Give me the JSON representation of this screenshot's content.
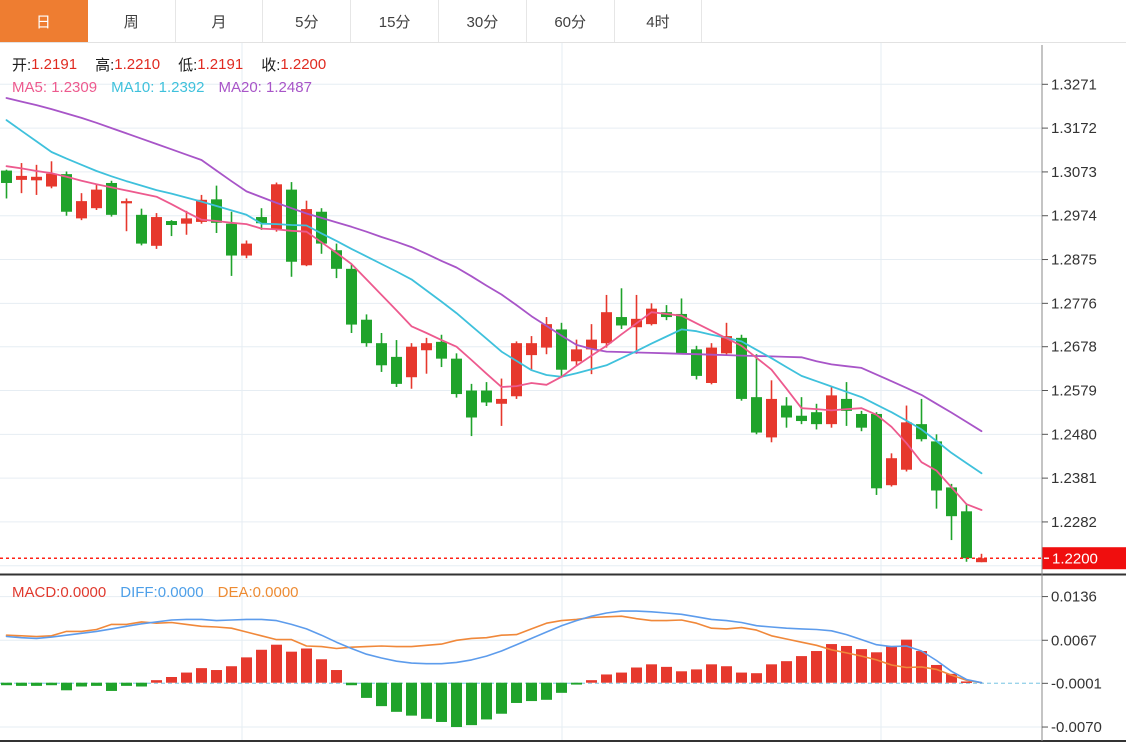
{
  "tabs": [
    {
      "label": "日",
      "active": true
    },
    {
      "label": "周",
      "active": false
    },
    {
      "label": "月",
      "active": false
    },
    {
      "label": "5分",
      "active": false
    },
    {
      "label": "15分",
      "active": false
    },
    {
      "label": "30分",
      "active": false
    },
    {
      "label": "60分",
      "active": false
    },
    {
      "label": "4时",
      "active": false
    }
  ],
  "ohlc_legend": {
    "open_label": "开:",
    "open_value": "1.2191",
    "high_label": "高:",
    "high_value": "1.2210",
    "low_label": "低:",
    "low_value": "1.2191",
    "close_label": "收:",
    "close_value": "1.2200"
  },
  "ma_legend": {
    "ma5_label": "MA5:",
    "ma5_value": "1.2309",
    "ma10_label": "MA10:",
    "ma10_value": "1.2392",
    "ma20_label": "MA20:",
    "ma20_value": "1.2487"
  },
  "macd_legend": {
    "macd_label": "MACD:",
    "macd_value": "0.0000",
    "diff_label": "DIFF:",
    "diff_value": "0.0000",
    "dea_label": "DEA:",
    "dea_value": "0.0000"
  },
  "price_tag": "1.2200",
  "colors": {
    "up": "#E6382D",
    "down": "#1FA32B",
    "ma5": "#ED5A8E",
    "ma10": "#3FC1DC",
    "ma20": "#A855C8",
    "ohlc_value": "#E02A20",
    "label_text": "#1c1c1c",
    "macd_text": "#E0392E",
    "diff_text": "#4D9FE8",
    "dea_text": "#ED8B33",
    "diff_line": "#5D9CEC",
    "dea_line": "#F0883A",
    "tag_bg": "#F00E0E",
    "tag_text": "#ffffff",
    "price_line": "#FF2015",
    "zero_dash": "#9BD4EA",
    "grid": "#E6EDF3",
    "axis_line": "#888888",
    "axis_text": "#333333",
    "tab_active_bg": "#EE7D31",
    "dark_border": "#333333"
  },
  "chart_data": {
    "type": "candlestick_with_macd",
    "note_color_convention": "red = up (close >= open), green = down",
    "candle_columns": [
      "open",
      "high",
      "low",
      "close"
    ],
    "candles": [
      [
        1.3076,
        1.3078,
        1.3013,
        1.3048
      ],
      [
        1.3055,
        1.3093,
        1.3025,
        1.3064
      ],
      [
        1.3054,
        1.3089,
        1.3021,
        1.3062
      ],
      [
        1.304,
        1.3097,
        1.3036,
        1.3069
      ],
      [
        1.3068,
        1.3074,
        1.2974,
        1.2983
      ],
      [
        1.2968,
        1.3025,
        1.2964,
        1.3007
      ],
      [
        1.2991,
        1.3045,
        1.2987,
        1.3033
      ],
      [
        1.3048,
        1.3053,
        1.2972,
        1.2976
      ],
      [
        1.3002,
        1.3013,
        1.2939,
        1.3007
      ],
      [
        1.2976,
        1.299,
        1.2907,
        1.2911
      ],
      [
        1.2906,
        1.298,
        1.2899,
        1.2971
      ],
      [
        1.2962,
        1.2964,
        1.2928,
        1.2953
      ],
      [
        1.2956,
        1.2985,
        1.2931,
        1.2968
      ],
      [
        1.296,
        1.3021,
        1.2956,
        1.301
      ],
      [
        1.3011,
        1.3042,
        1.2935,
        1.2958
      ],
      [
        1.2956,
        1.2983,
        1.2838,
        1.2884
      ],
      [
        1.2884,
        1.2918,
        1.2878,
        1.2911
      ],
      [
        1.2971,
        1.2991,
        1.2942,
        1.2957
      ],
      [
        1.2942,
        1.3049,
        1.2938,
        1.3045
      ],
      [
        1.3033,
        1.305,
        1.2836,
        1.287
      ],
      [
        1.2862,
        1.3008,
        1.286,
        1.2989
      ],
      [
        1.2983,
        1.2991,
        1.2888,
        1.2911
      ],
      [
        1.2896,
        1.2911,
        1.2833,
        1.2854
      ],
      [
        1.2854,
        1.2865,
        1.2709,
        1.2728
      ],
      [
        1.2739,
        1.2751,
        1.2678,
        1.2686
      ],
      [
        1.2686,
        1.2709,
        1.2621,
        1.2636
      ],
      [
        1.2655,
        1.2693,
        1.2587,
        1.2594
      ],
      [
        1.2609,
        1.2686,
        1.2583,
        1.2678
      ],
      [
        1.267,
        1.2698,
        1.2617,
        1.2686
      ],
      [
        1.2689,
        1.2705,
        1.2632,
        1.2651
      ],
      [
        1.2651,
        1.2663,
        1.2563,
        1.2571
      ],
      [
        1.2579,
        1.2594,
        1.2476,
        1.2518
      ],
      [
        1.2579,
        1.2598,
        1.2544,
        1.2552
      ],
      [
        1.2549,
        1.2606,
        1.2499,
        1.256
      ],
      [
        1.2566,
        1.269,
        1.256,
        1.2686
      ],
      [
        1.2659,
        1.2702,
        1.2626,
        1.2686
      ],
      [
        1.2676,
        1.2745,
        1.2661,
        1.2729
      ],
      [
        1.2717,
        1.2732,
        1.2612,
        1.2626
      ],
      [
        1.2645,
        1.2694,
        1.2634,
        1.2672
      ],
      [
        1.2672,
        1.2729,
        1.2616,
        1.2694
      ],
      [
        1.2686,
        1.2795,
        1.2676,
        1.2756
      ],
      [
        1.2745,
        1.281,
        1.2718,
        1.2726
      ],
      [
        1.2722,
        1.2795,
        1.2662,
        1.2741
      ],
      [
        1.2729,
        1.2776,
        1.2726,
        1.2764
      ],
      [
        1.2756,
        1.2772,
        1.2738,
        1.2745
      ],
      [
        1.2752,
        1.2787,
        1.2661,
        1.2662
      ],
      [
        1.2672,
        1.268,
        1.2604,
        1.2612
      ],
      [
        1.2596,
        1.2686,
        1.2593,
        1.2676
      ],
      [
        1.2663,
        1.2732,
        1.2657,
        1.2702
      ],
      [
        1.2698,
        1.2705,
        1.2556,
        1.256
      ],
      [
        1.2564,
        1.2661,
        1.248,
        1.2484
      ],
      [
        1.2473,
        1.2602,
        1.2462,
        1.256
      ],
      [
        1.2545,
        1.2564,
        1.2495,
        1.2518
      ],
      [
        1.2522,
        1.2564,
        1.2503,
        1.251
      ],
      [
        1.253,
        1.2549,
        1.2491,
        1.2503
      ],
      [
        1.2503,
        1.2587,
        1.2495,
        1.2568
      ],
      [
        1.256,
        1.2598,
        1.2499,
        1.2533
      ],
      [
        1.2526,
        1.2533,
        1.2487,
        1.2495
      ],
      [
        1.2526,
        1.253,
        1.2343,
        1.2358
      ],
      [
        1.2365,
        1.2437,
        1.2362,
        1.2426
      ],
      [
        1.24,
        1.2545,
        1.2396,
        1.2507
      ],
      [
        1.2503,
        1.256,
        1.2464,
        1.2469
      ],
      [
        1.2464,
        1.248,
        1.2312,
        1.2353
      ],
      [
        1.236,
        1.2368,
        1.2241,
        1.2295
      ],
      [
        1.2306,
        1.2322,
        1.2192,
        1.22
      ],
      [
        1.2191,
        1.221,
        1.2191,
        1.22
      ]
    ],
    "ma5": [
      1.3086,
      1.3081,
      1.3075,
      1.307,
      1.3062,
      1.3053,
      1.3045,
      1.3038,
      1.3031,
      1.3024,
      1.3017,
      1.3,
      1.2982,
      1.2965,
      1.2962,
      1.2958,
      1.2955,
      1.2945,
      1.2943,
      1.294,
      1.2938,
      1.2914,
      1.289,
      1.2865,
      1.283,
      1.2795,
      1.276,
      1.2724,
      1.2709,
      1.2693,
      1.2678,
      1.2648,
      1.2617,
      1.2587,
      1.2589,
      1.2596,
      1.2592,
      1.261,
      1.2635,
      1.2658,
      1.268,
      1.2706,
      1.2731,
      1.2756,
      1.2752,
      1.2748,
      1.2731,
      1.2714,
      1.2697,
      1.268,
      1.2653,
      1.2626,
      1.2583,
      1.2539,
      1.2537,
      1.2534,
      1.2537,
      1.2539,
      1.2524,
      1.2497,
      1.246,
      1.2417,
      1.2398,
      1.236,
      1.2322,
      1.2309
    ],
    "ma10": [
      1.319,
      1.3166,
      1.3142,
      1.3118,
      1.3103,
      1.3089,
      1.3075,
      1.3063,
      1.3052,
      1.3042,
      1.3032,
      1.3024,
      1.3015,
      1.3006,
      1.2996,
      1.2986,
      1.2976,
      1.2956,
      1.2955,
      1.2953,
      1.2952,
      1.2934,
      1.2917,
      1.2899,
      1.2882,
      1.2865,
      1.2848,
      1.283,
      1.2805,
      1.278,
      1.2754,
      1.2725,
      1.2696,
      1.2667,
      1.2646,
      1.2625,
      1.2614,
      1.261,
      1.2618,
      1.2627,
      1.2636,
      1.2652,
      1.2668,
      1.2685,
      1.2701,
      1.2717,
      1.2713,
      1.2705,
      1.2698,
      1.269,
      1.2671,
      1.2652,
      1.2632,
      1.2612,
      1.26,
      1.2588,
      1.2576,
      1.2564,
      1.2547,
      1.253,
      1.2511,
      1.2491,
      1.2465,
      1.2438,
      1.2415,
      1.2392
    ],
    "ma20": [
      1.324,
      1.3232,
      1.3224,
      1.3215,
      1.3205,
      1.3195,
      1.3184,
      1.3172,
      1.316,
      1.3148,
      1.3136,
      1.3124,
      1.3112,
      1.31,
      1.3076,
      1.3052,
      1.3029,
      1.3016,
      1.3003,
      1.2991,
      1.2979,
      1.2969,
      1.2959,
      1.2949,
      1.2938,
      1.2926,
      1.2915,
      1.2903,
      1.2888,
      1.2872,
      1.2857,
      1.2837,
      1.2816,
      1.2796,
      1.2772,
      1.2747,
      1.2725,
      1.2703,
      1.2682,
      1.2673,
      1.2667,
      1.2666,
      1.2665,
      1.2664,
      1.2663,
      1.2662,
      1.2661,
      1.266,
      1.2659,
      1.2658,
      1.2657,
      1.2656,
      1.2655,
      1.2654,
      1.2645,
      1.2638,
      1.2634,
      1.263,
      1.2615,
      1.26,
      1.2585,
      1.2569,
      1.2549,
      1.2529,
      1.2508,
      1.2487
    ],
    "macd_histogram": [
      -0.0004,
      -0.0005,
      -0.0005,
      -0.0004,
      -0.0012,
      -0.0006,
      -0.0005,
      -0.0013,
      -0.0005,
      -0.0006,
      0.0004,
      0.0009,
      0.0016,
      0.0023,
      0.002,
      0.0026,
      0.004,
      0.0052,
      0.006,
      0.0049,
      0.0054,
      0.0037,
      0.002,
      -0.0004,
      -0.0024,
      -0.0037,
      -0.0046,
      -0.0052,
      -0.0057,
      -0.0062,
      -0.007,
      -0.0067,
      -0.0058,
      -0.0049,
      -0.0032,
      -0.0029,
      -0.0027,
      -0.0016,
      -0.0003,
      0.0004,
      0.0013,
      0.0016,
      0.0024,
      0.0029,
      0.0025,
      0.0018,
      0.0021,
      0.0029,
      0.0026,
      0.0016,
      0.0015,
      0.0029,
      0.0034,
      0.0042,
      0.005,
      0.0061,
      0.0058,
      0.0053,
      0.0048,
      0.0058,
      0.0068,
      0.005,
      0.0028,
      0.0014,
      0.0002,
      0.0
    ],
    "diff": [
      0.0073,
      0.0071,
      0.007,
      0.0072,
      0.0075,
      0.0078,
      0.0081,
      0.0085,
      0.0089,
      0.0093,
      0.0096,
      0.0099,
      0.01,
      0.01,
      0.0098,
      0.0099,
      0.01,
      0.01,
      0.0098,
      0.0092,
      0.0085,
      0.0075,
      0.0064,
      0.0054,
      0.0045,
      0.0039,
      0.0034,
      0.0031,
      0.003,
      0.003,
      0.0032,
      0.0036,
      0.0042,
      0.005,
      0.006,
      0.007,
      0.008,
      0.009,
      0.0098,
      0.0105,
      0.011,
      0.0113,
      0.0113,
      0.0112,
      0.011,
      0.0108,
      0.0104,
      0.01,
      0.0098,
      0.0095,
      0.009,
      0.0088,
      0.0086,
      0.0085,
      0.0084,
      0.0082,
      0.0076,
      0.0068,
      0.006,
      0.0057,
      0.0058,
      0.005,
      0.0035,
      0.0018,
      0.0005,
      0.0
    ],
    "dea": [
      0.0075,
      0.0074,
      0.0073,
      0.0074,
      0.0081,
      0.0081,
      0.0084,
      0.0092,
      0.0092,
      0.0096,
      0.0094,
      0.0095,
      0.0092,
      0.0089,
      0.0088,
      0.0086,
      0.008,
      0.0074,
      0.0068,
      0.0068,
      0.0058,
      0.0057,
      0.0054,
      0.0056,
      0.0057,
      0.0058,
      0.0057,
      0.0057,
      0.0059,
      0.0061,
      0.0067,
      0.007,
      0.0071,
      0.0075,
      0.0076,
      0.0085,
      0.0094,
      0.0098,
      0.01,
      0.0103,
      0.0104,
      0.0105,
      0.0101,
      0.0098,
      0.0098,
      0.0099,
      0.0094,
      0.0086,
      0.0085,
      0.0087,
      0.0083,
      0.0074,
      0.0069,
      0.0064,
      0.0059,
      0.0052,
      0.0047,
      0.0042,
      0.0036,
      0.0028,
      0.0024,
      0.0025,
      0.0021,
      0.0012,
      0.0004,
      0.0
    ],
    "current_price": 1.22,
    "price_axis": {
      "tick_labels": [
        "1.3271",
        "1.3172",
        "1.3073",
        "1.2974",
        "1.2875",
        "1.2776",
        "1.2678",
        "1.2579",
        "1.2480",
        "1.2381",
        "1.2282"
      ],
      "gridline_values": [
        1.3271,
        1.3172,
        1.3073,
        1.2974,
        1.2875,
        1.2776,
        1.2678,
        1.2579,
        1.248,
        1.2381,
        1.2282,
        1.2183
      ]
    },
    "macd_axis": {
      "tick_labels": [
        "0.0136",
        "0.0067",
        "-0.0001",
        "-0.0070"
      ],
      "dashed_zero_value": -0.0001
    }
  }
}
